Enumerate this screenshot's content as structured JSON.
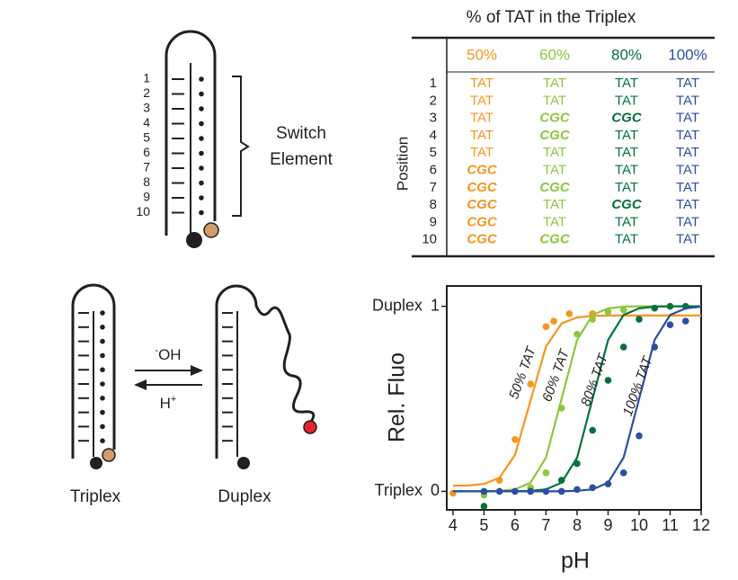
{
  "switch_diagram": {
    "positions": [
      1,
      2,
      3,
      4,
      5,
      6,
      7,
      8,
      9,
      10
    ],
    "label": [
      "Switch",
      "Element"
    ]
  },
  "table": {
    "title": "% of TAT in the Triplex",
    "row_header": "Position",
    "columns": [
      "50%",
      "60%",
      "80%",
      "100%"
    ],
    "column_colors": [
      "#f7941d",
      "#8dc63f",
      "#00733c",
      "#2b4ea2"
    ],
    "rows": [
      {
        "position": 1,
        "cells": [
          "TAT",
          "TAT",
          "TAT",
          "TAT"
        ]
      },
      {
        "position": 2,
        "cells": [
          "TAT",
          "TAT",
          "TAT",
          "TAT"
        ]
      },
      {
        "position": 3,
        "cells": [
          "TAT",
          "CGC",
          "CGC",
          "TAT"
        ]
      },
      {
        "position": 4,
        "cells": [
          "TAT",
          "CGC",
          "TAT",
          "TAT"
        ]
      },
      {
        "position": 5,
        "cells": [
          "TAT",
          "TAT",
          "TAT",
          "TAT"
        ]
      },
      {
        "position": 6,
        "cells": [
          "CGC",
          "TAT",
          "TAT",
          "TAT"
        ]
      },
      {
        "position": 7,
        "cells": [
          "CGC",
          "CGC",
          "TAT",
          "TAT"
        ]
      },
      {
        "position": 8,
        "cells": [
          "CGC",
          "TAT",
          "CGC",
          "TAT"
        ]
      },
      {
        "position": 9,
        "cells": [
          "CGC",
          "TAT",
          "TAT",
          "TAT"
        ]
      },
      {
        "position": 10,
        "cells": [
          "CGC",
          "CGC",
          "TAT",
          "TAT"
        ]
      }
    ]
  },
  "scheme": {
    "forward": {
      "sup": "-",
      "text": "OH"
    },
    "reverse": {
      "text": "H",
      "sup": "+"
    },
    "states": [
      "Triplex",
      "Duplex"
    ]
  },
  "chart_data": {
    "type": "scatter",
    "x_label": "pH",
    "y_label": "Rel. Fluo",
    "xlim": [
      3.8,
      12
    ],
    "xticks": [
      4,
      5,
      6,
      7,
      8,
      9,
      10,
      11,
      12
    ],
    "ylim": [
      -0.1,
      1.11
    ],
    "yticks": [
      0,
      1
    ],
    "y_annotations": [
      {
        "value": 0,
        "text": "Triplex"
      },
      {
        "value": 1,
        "text": "Duplex"
      }
    ],
    "fit_x": [
      4,
      4.5,
      5,
      5.5,
      6,
      6.5,
      7,
      7.5,
      8,
      8.5,
      9,
      9.5,
      10,
      10.5,
      11,
      11.5,
      12
    ],
    "series": [
      {
        "name": "50% TAT",
        "color": "#f7941d",
        "x": [
          4,
          5,
          5.5,
          6,
          6.5,
          7,
          7.25,
          7.75,
          8.5
        ],
        "values": [
          -0.01,
          -0.005,
          0.06,
          0.28,
          0.58,
          0.89,
          0.92,
          0.96,
          0.96
        ],
        "fit_values": [
          0.03,
          0.032,
          0.04,
          0.073,
          0.197,
          0.49,
          0.783,
          0.907,
          0.94,
          0.948,
          0.95,
          0.95,
          0.95,
          0.95,
          0.95,
          0.95,
          0.95
        ]
      },
      {
        "name": "60% TAT",
        "color": "#8dc63f",
        "x": [
          5,
          6.5,
          7,
          7.5,
          8,
          8.5,
          9,
          9.5
        ],
        "values": [
          -0.02,
          0.02,
          0.1,
          0.45,
          0.85,
          0.93,
          0.97,
          0.98
        ],
        "fit_values": [
          0,
          0,
          0,
          0.003,
          0.011,
          0.047,
          0.182,
          0.5,
          0.818,
          0.953,
          0.989,
          0.998,
          1,
          1,
          1,
          1,
          1
        ]
      },
      {
        "name": "80% TAT",
        "color": "#00733c",
        "x": [
          5,
          6.5,
          7.5,
          8,
          8.5,
          9,
          9.5,
          10,
          10.5,
          11,
          11.5
        ],
        "values": [
          -0.08,
          0,
          0.06,
          0.15,
          0.33,
          0.6,
          0.78,
          0.93,
          0.99,
          1,
          1
        ],
        "fit_values": [
          0,
          0,
          0,
          0,
          0,
          0.003,
          0.011,
          0.047,
          0.182,
          0.5,
          0.818,
          0.953,
          0.989,
          0.998,
          1,
          1,
          1
        ]
      },
      {
        "name": "100% TAT",
        "color": "#2b4ea2",
        "x": [
          5,
          5.5,
          6,
          6.5,
          7,
          7.5,
          8,
          8.5,
          9,
          9.5,
          10,
          10.5,
          11,
          11.5
        ],
        "values": [
          0,
          0,
          0,
          0,
          0,
          0,
          0.01,
          0.02,
          0.04,
          0.1,
          0.3,
          0.78,
          0.9,
          0.92
        ],
        "fit_values": [
          0,
          0,
          0,
          0,
          0,
          0,
          0,
          0,
          0.003,
          0.011,
          0.047,
          0.182,
          0.5,
          0.818,
          0.953,
          0.989,
          0.998
        ]
      }
    ]
  }
}
